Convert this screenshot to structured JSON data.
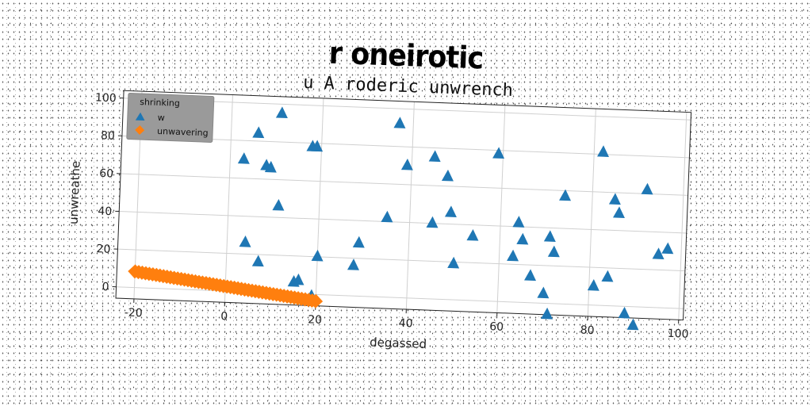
{
  "title": "r oneirotic",
  "chart_data": {
    "type": "scatter",
    "subtitle": "u A roderic unwrench",
    "xlabel": "degassed",
    "ylabel": "unwreathe",
    "xlim": [
      -24,
      101
    ],
    "ylim": [
      -6,
      104
    ],
    "xticks": [
      -20,
      0,
      20,
      40,
      60,
      80,
      100
    ],
    "yticks": [
      0,
      20,
      40,
      60,
      80,
      100
    ],
    "grid": true,
    "legend": {
      "title": "shrinking",
      "placement": "top-left"
    },
    "series": [
      {
        "name": "w",
        "marker": "triangle",
        "color": "#1f77b4",
        "points": [
          [
            3,
            70
          ],
          [
            4,
            26
          ],
          [
            6,
            84
          ],
          [
            7,
            16
          ],
          [
            8,
            67
          ],
          [
            9,
            66
          ],
          [
            11,
            95
          ],
          [
            11,
            46
          ],
          [
            15,
            6
          ],
          [
            16,
            7
          ],
          [
            18,
            78
          ],
          [
            19,
            78
          ],
          [
            19,
            -1
          ],
          [
            20,
            20
          ],
          [
            28,
            16
          ],
          [
            29,
            28
          ],
          [
            35,
            42
          ],
          [
            37,
            92
          ],
          [
            39,
            70
          ],
          [
            45,
            75
          ],
          [
            45,
            40
          ],
          [
            48,
            65
          ],
          [
            49,
            46
          ],
          [
            50,
            19
          ],
          [
            54,
            34
          ],
          [
            59,
            78
          ],
          [
            63,
            24
          ],
          [
            64,
            42
          ],
          [
            65,
            33
          ],
          [
            67,
            14
          ],
          [
            70,
            5
          ],
          [
            71,
            35
          ],
          [
            71,
            -6
          ],
          [
            72,
            27
          ],
          [
            74,
            57
          ],
          [
            81,
            10
          ],
          [
            82,
            81
          ],
          [
            84,
            15
          ],
          [
            85,
            56
          ],
          [
            86,
            49
          ],
          [
            88,
            -4
          ],
          [
            90,
            -10
          ],
          [
            92,
            62
          ],
          [
            95,
            28
          ],
          [
            97,
            31
          ]
        ]
      },
      {
        "name": "unwavering",
        "marker": "diamond",
        "color": "#ff7f0e",
        "line": {
          "x_from": -20,
          "y_from": 8.5,
          "x_to": 20,
          "y_to": -3.5,
          "count": 52
        }
      }
    ]
  }
}
